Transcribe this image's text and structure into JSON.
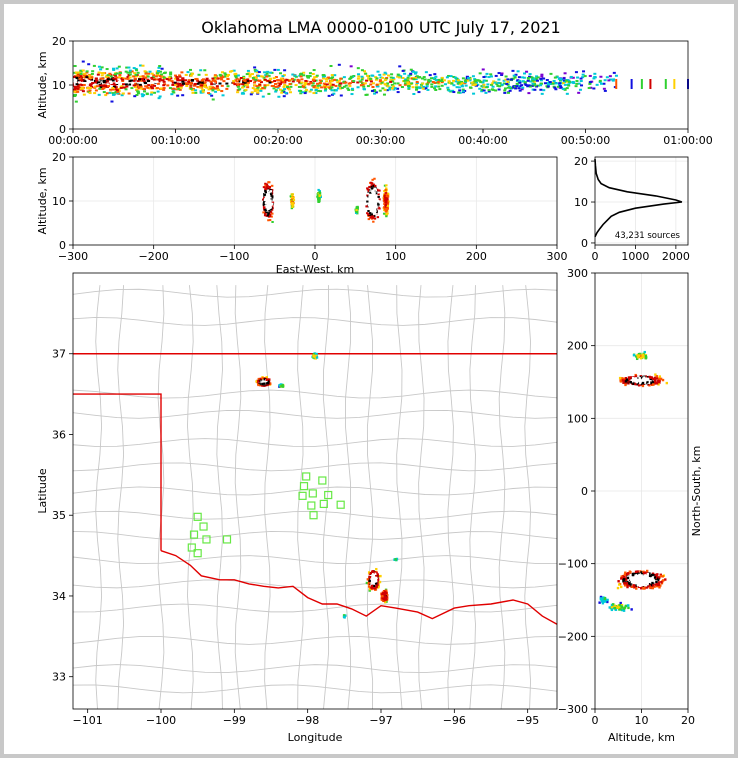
{
  "title": "Oklahoma LMA 0000-0100 UTC July 17, 2021",
  "chart_data": [
    {
      "id": "time-height",
      "type": "heatmap",
      "ylabel": "Altitude, km",
      "ylim": [
        0,
        20
      ],
      "yticks": [
        0,
        10,
        20
      ],
      "xlim": [
        0,
        3600
      ],
      "xticks": [
        {
          "v": 0,
          "label": "00:00:00"
        },
        {
          "v": 600,
          "label": "00:10:00"
        },
        {
          "v": 1200,
          "label": "00:20:00"
        },
        {
          "v": 1800,
          "label": "00:30:00"
        },
        {
          "v": 2400,
          "label": "00:40:00"
        },
        {
          "v": 3000,
          "label": "00:50:00"
        },
        {
          "v": 3600,
          "label": "01:00:00"
        }
      ]
    },
    {
      "id": "ew-height",
      "type": "heatmap",
      "xlabel": "East-West, km",
      "ylabel": "Altitude, km",
      "xlim": [
        -300,
        300
      ],
      "xticks": [
        -300,
        -200,
        -100,
        0,
        100,
        200,
        300
      ],
      "ylim": [
        0,
        20
      ],
      "yticks": [
        0,
        10,
        20
      ],
      "clusters": [
        {
          "x": -58,
          "y": 10
        },
        {
          "x": -28,
          "y": 10
        },
        {
          "x": 5,
          "y": 10
        },
        {
          "x": 52,
          "y": 8
        },
        {
          "x": 72,
          "y": 10
        },
        {
          "x": 88,
          "y": 10
        }
      ]
    },
    {
      "id": "source-histogram",
      "type": "line",
      "xlim": [
        0,
        2300
      ],
      "xticks": [
        0,
        1000,
        2000
      ],
      "ylim": [
        -0.5,
        21
      ],
      "yticks": [
        0,
        10,
        20
      ],
      "annotation": "43,231 sources",
      "points": [
        [
          0,
          1.5
        ],
        [
          50,
          2.5
        ],
        [
          120,
          3.5
        ],
        [
          200,
          4.5
        ],
        [
          300,
          5.5
        ],
        [
          400,
          6.5
        ],
        [
          600,
          7.5
        ],
        [
          1000,
          8.5
        ],
        [
          1700,
          9.5
        ],
        [
          2150,
          10
        ],
        [
          2000,
          10.5
        ],
        [
          1500,
          11.5
        ],
        [
          800,
          12.5
        ],
        [
          350,
          13.5
        ],
        [
          150,
          14.5
        ],
        [
          80,
          15.5
        ],
        [
          30,
          17
        ],
        [
          10,
          19
        ],
        [
          0,
          20.5
        ]
      ]
    },
    {
      "id": "plan-view",
      "type": "scatter",
      "xlabel": "Longitude",
      "ylabel": "Latitude",
      "xlim": [
        -101.2,
        -94.6
      ],
      "xticks": [
        -101,
        -100,
        -99,
        -98,
        -97,
        -96,
        -95
      ],
      "ylim": [
        32.6,
        38.0
      ],
      "yticks": [
        33,
        34,
        35,
        36,
        37
      ],
      "clusters": [
        {
          "lon": -98.6,
          "lat": 36.65
        },
        {
          "lon": -97.9,
          "lat": 36.97
        },
        {
          "lon": -97.1,
          "lat": 34.2
        },
        {
          "lon": -96.95,
          "lat": 34.0
        }
      ],
      "stations": [
        [
          -99.55,
          34.76
        ],
        [
          -99.5,
          34.98
        ],
        [
          -99.42,
          34.86
        ],
        [
          -99.38,
          34.7
        ],
        [
          -99.1,
          34.7
        ],
        [
          -99.5,
          34.53
        ],
        [
          -99.58,
          34.6
        ],
        [
          -98.02,
          35.48
        ],
        [
          -98.05,
          35.36
        ],
        [
          -98.07,
          35.24
        ],
        [
          -97.93,
          35.27
        ],
        [
          -97.8,
          35.43
        ],
        [
          -97.72,
          35.25
        ],
        [
          -97.78,
          35.14
        ],
        [
          -97.55,
          35.13
        ],
        [
          -97.95,
          35.12
        ],
        [
          -97.92,
          35.0
        ]
      ]
    },
    {
      "id": "ns-height",
      "type": "heatmap",
      "xlabel": "Altitude, km",
      "ylabel": "North-South, km",
      "xlim": [
        0,
        20
      ],
      "xticks": [
        0,
        10,
        20
      ],
      "ylim": [
        -300,
        300
      ],
      "yticks": [
        -300,
        -200,
        -100,
        0,
        100,
        200,
        300
      ],
      "clusters": [
        {
          "alt": 10,
          "ns": 152
        },
        {
          "alt": 10,
          "ns": 185
        },
        {
          "alt": 10,
          "ns": -122
        },
        {
          "alt": 5,
          "ns": -160
        }
      ]
    }
  ]
}
